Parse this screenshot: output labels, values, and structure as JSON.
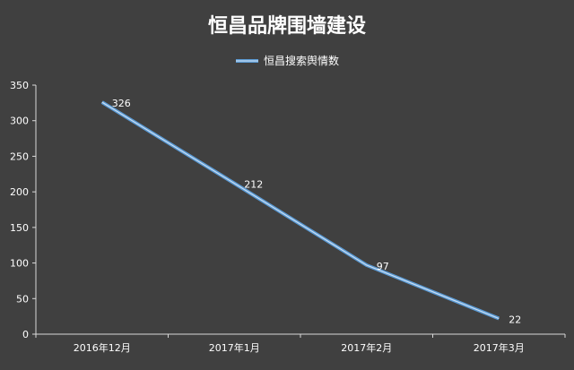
{
  "chart_data": {
    "type": "line",
    "title": "恒昌品牌围墙建设",
    "categories": [
      "2016年12月",
      "2017年1月",
      "2017年2月",
      "2017年3月"
    ],
    "series": [
      {
        "name": "恒昌搜索舆情数",
        "values": [
          326,
          212,
          97,
          22
        ]
      }
    ],
    "data_labels": [
      "326",
      "212",
      "97",
      "22"
    ],
    "ylim": [
      0,
      350
    ],
    "yticks": [
      0,
      50,
      100,
      150,
      200,
      250,
      300,
      350
    ],
    "ytick_labels": [
      "0",
      "50",
      "100",
      "150",
      "200",
      "250",
      "300",
      "350"
    ],
    "xlabel": "",
    "ylabel": "",
    "grid": false,
    "legend_position": "top-center",
    "colors": {
      "background": "#404040",
      "line": "#5b9bd5",
      "line_highlight": "#c9ddf2",
      "text": "#ffffff",
      "axis": "#d9d9d9"
    }
  }
}
